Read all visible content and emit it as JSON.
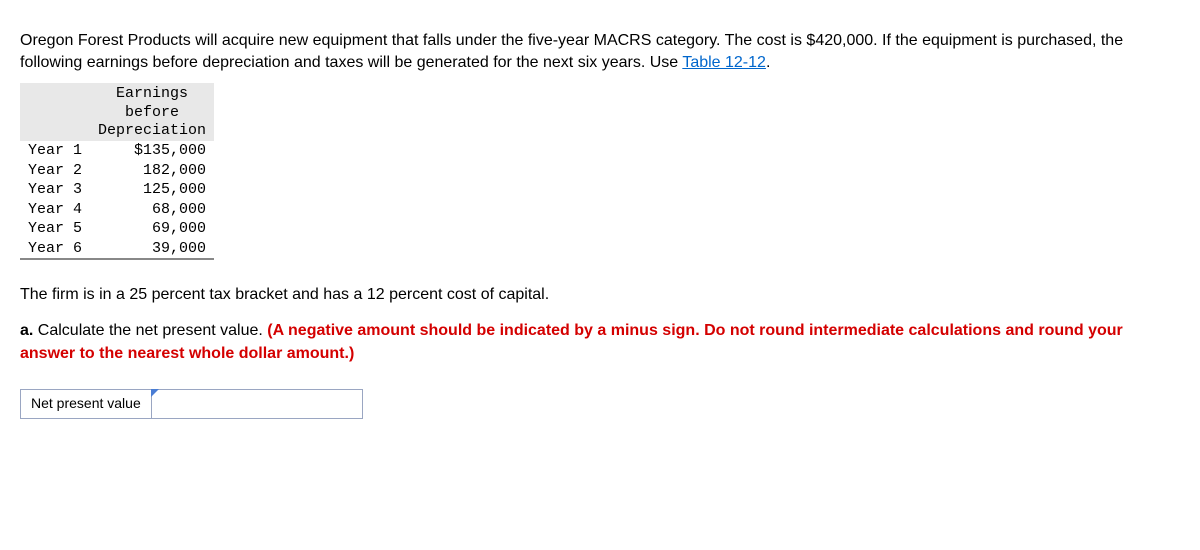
{
  "problem": {
    "text_before_link": "Oregon Forest Products will acquire new equipment that falls under the five-year MACRS category. The cost is $420,000. If the equipment is purchased, the following earnings before depreciation and taxes will be generated for the next six years. Use ",
    "link_text": "Table 12-12",
    "text_after_link": "."
  },
  "table": {
    "header_line1": "Earnings",
    "header_line2": "before",
    "header_line3": "Depreciation",
    "rows": [
      {
        "label": "Year 1",
        "value": "$135,000"
      },
      {
        "label": "Year 2",
        "value": "182,000"
      },
      {
        "label": "Year 3",
        "value": "125,000"
      },
      {
        "label": "Year 4",
        "value": "68,000"
      },
      {
        "label": "Year 5",
        "value": "69,000"
      },
      {
        "label": "Year 6",
        "value": "39,000"
      }
    ]
  },
  "tax_line": "The firm is in a 25 percent tax bracket and has a 12 percent cost of capital.",
  "question_a": {
    "prefix_bold": "a. ",
    "plain": "Calculate the net present value. ",
    "red": "(A negative amount should be indicated by a minus sign. Do not round intermediate calculations and round your answer to the nearest whole dollar amount.)"
  },
  "npv": {
    "label": "Net present value",
    "value": ""
  }
}
